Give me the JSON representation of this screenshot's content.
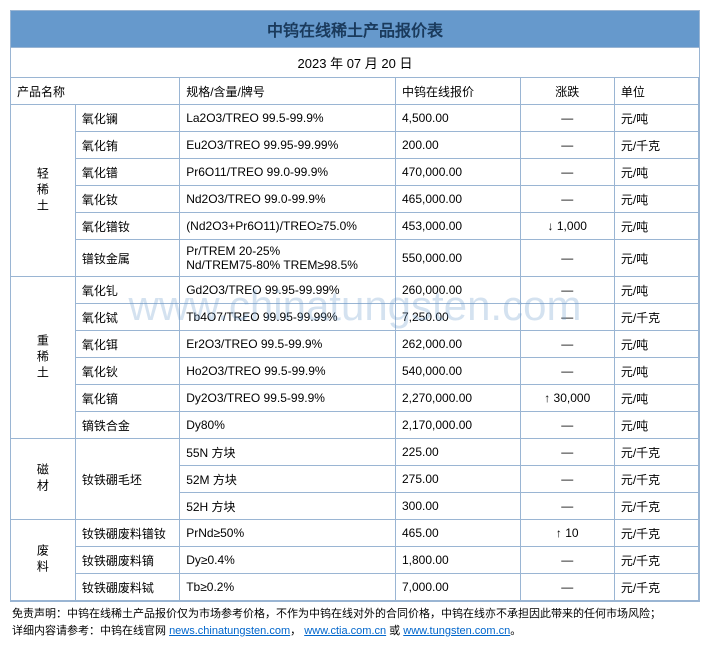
{
  "title": "中钨在线稀土产品报价表",
  "date": "2023 年 07 月 20 日",
  "watermark": "www.chinatungsten.com",
  "headers": {
    "product": "产品名称",
    "spec": "规格/含量/牌号",
    "price": "中钨在线报价",
    "change": "涨跌",
    "unit": "单位"
  },
  "groups": [
    {
      "category": "轻稀土",
      "rows": [
        {
          "name": "氧化镧",
          "spec": "La2O3/TREO 99.5-99.9%",
          "price": "4,500.00",
          "change": "—",
          "unit": "元/吨"
        },
        {
          "name": "氧化铕",
          "spec": "Eu2O3/TREO 99.95-99.99%",
          "price": "200.00",
          "change": "—",
          "unit": "元/千克"
        },
        {
          "name": "氧化镨",
          "spec": "Pr6O11/TREO 99.0-99.9%",
          "price": "470,000.00",
          "change": "—",
          "unit": "元/吨"
        },
        {
          "name": "氧化钕",
          "spec": "Nd2O3/TREO 99.0-99.9%",
          "price": "465,000.00",
          "change": "—",
          "unit": "元/吨"
        },
        {
          "name": "氧化镨钕",
          "spec": "(Nd2O3+Pr6O11)/TREO≥75.0%",
          "price": "453,000.00",
          "change": "↓ 1,000",
          "unit": "元/吨"
        },
        {
          "name": "镨钕金属",
          "spec": "Pr/TREM 20-25%\nNd/TREM75-80% TREM≥98.5%",
          "price": "550,000.00",
          "change": "—",
          "unit": "元/吨"
        }
      ]
    },
    {
      "category": "重稀土",
      "rows": [
        {
          "name": "氧化钆",
          "spec": "Gd2O3/TREO 99.95-99.99%",
          "price": "260,000.00",
          "change": "—",
          "unit": "元/吨"
        },
        {
          "name": "氧化铽",
          "spec": "Tb4O7/TREO 99.95-99.99%",
          "price": "7,250.00",
          "change": "—",
          "unit": "元/千克"
        },
        {
          "name": "氧化铒",
          "spec": "Er2O3/TREO 99.5-99.9%",
          "price": "262,000.00",
          "change": "—",
          "unit": "元/吨"
        },
        {
          "name": "氧化钬",
          "spec": "Ho2O3/TREO 99.5-99.9%",
          "price": "540,000.00",
          "change": "—",
          "unit": "元/吨"
        },
        {
          "name": "氧化镝",
          "spec": "Dy2O3/TREO 99.5-99.9%",
          "price": "2,270,000.00",
          "change": "↑ 30,000",
          "unit": "元/吨"
        },
        {
          "name": "镝铁合金",
          "spec": "Dy80%",
          "price": "2,170,000.00",
          "change": "—",
          "unit": "元/吨"
        }
      ]
    },
    {
      "category": "磁材",
      "rows": [
        {
          "name": "钕铁硼毛坯",
          "namespan": 3,
          "spec": "55N 方块",
          "price": "225.00",
          "change": "—",
          "unit": "元/千克"
        },
        {
          "spec": "52M 方块",
          "price": "275.00",
          "change": "—",
          "unit": "元/千克"
        },
        {
          "spec": "52H 方块",
          "price": "300.00",
          "change": "—",
          "unit": "元/千克"
        }
      ]
    },
    {
      "category": "废料",
      "rows": [
        {
          "name": "钕铁硼废料镨钕",
          "spec": "PrNd≥50%",
          "price": "465.00",
          "change": "↑ 10",
          "unit": "元/千克"
        },
        {
          "name": "钕铁硼废料镝",
          "spec": "Dy≥0.4%",
          "price": "1,800.00",
          "change": "—",
          "unit": "元/千克"
        },
        {
          "name": "钕铁硼废料铽",
          "spec": "Tb≥0.2%",
          "price": "7,000.00",
          "change": "—",
          "unit": "元/千克"
        }
      ]
    }
  ],
  "disclaimer": {
    "line1_a": "免责声明：中钨在线稀土产品报价仅为市场参考价格，不作为中钨在线对外的合同价格，中钨在线亦不承担因此带来的任何市场风险；",
    "line2_a": "详细内容请参考：中钨在线官网 ",
    "link1": "news.chinatungsten.com",
    "sep1": "，",
    "link2": "www.ctia.com.cn",
    "sep2": " 或 ",
    "link3": "www.tungsten.com.cn",
    "end": "。"
  }
}
